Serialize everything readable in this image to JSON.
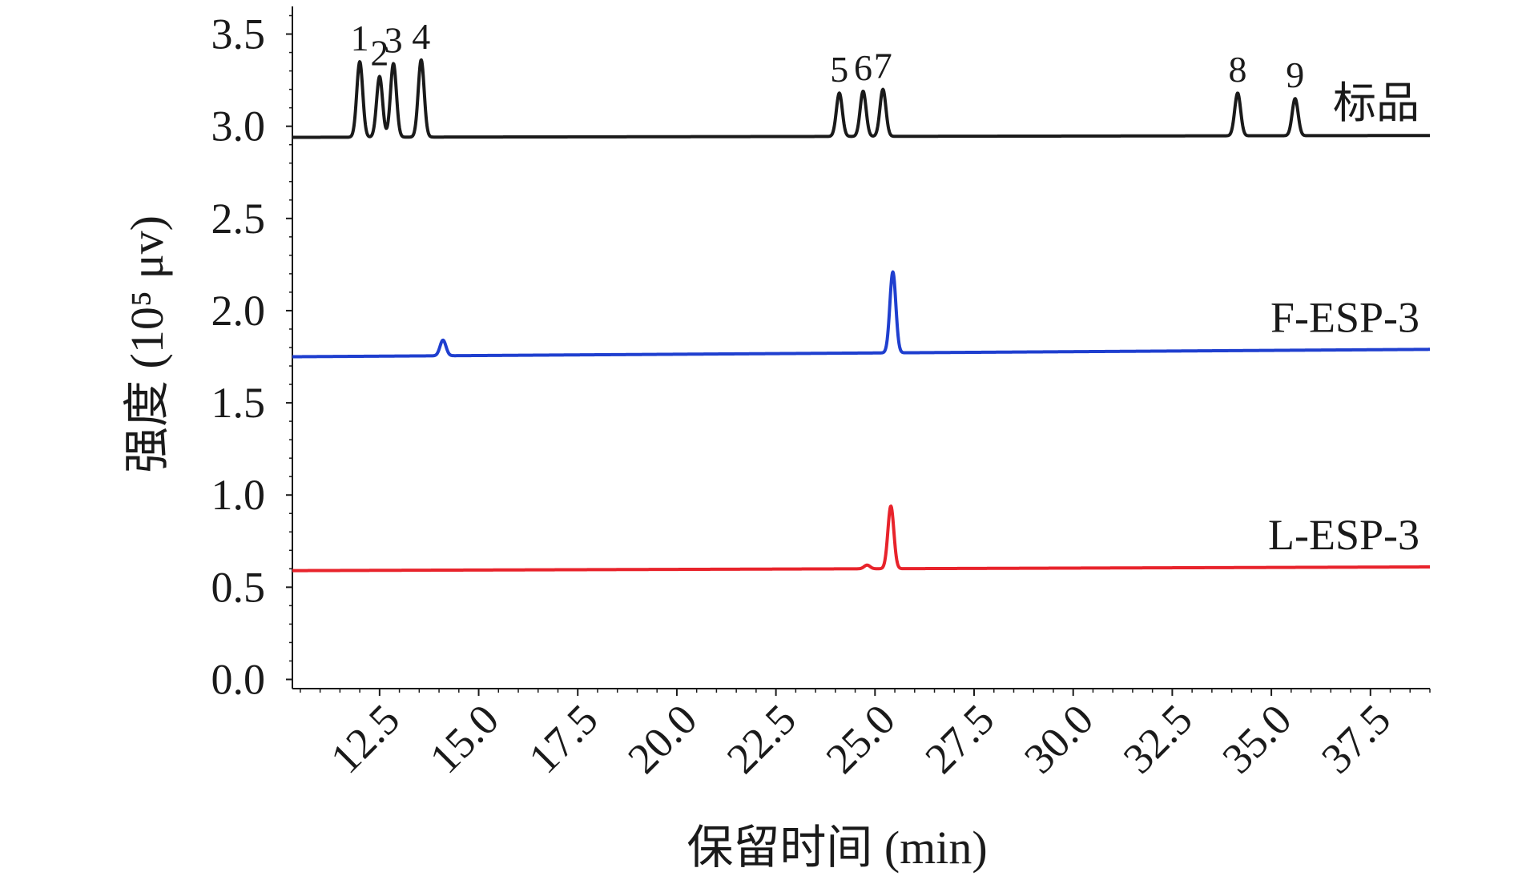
{
  "chart_data": {
    "type": "line",
    "xlabel": "保留时间 (min)",
    "ylabel": "强度 (10⁵ μv)",
    "xlim": [
      10.3,
      39.0
    ],
    "ylim": [
      -0.05,
      3.65
    ],
    "x_ticks": [
      "12.5",
      "15.0",
      "17.5",
      "20.0",
      "22.5",
      "25.0",
      "27.5",
      "30.0",
      "32.5",
      "35.0",
      "37.5"
    ],
    "y_ticks": [
      "0.0",
      "0.5",
      "1.0",
      "1.5",
      "2.0",
      "2.5",
      "3.0",
      "3.5"
    ],
    "grid": false,
    "series": [
      {
        "name": "标品",
        "color": "#1a1a1a",
        "baseline_start": 2.94,
        "baseline_end": 2.95,
        "peaks": [
          {
            "label": "1",
            "x": 12.0,
            "y": 3.35
          },
          {
            "label": "2",
            "x": 12.5,
            "y": 3.27
          },
          {
            "label": "3",
            "x": 12.85,
            "y": 3.34
          },
          {
            "label": "4",
            "x": 13.55,
            "y": 3.36
          },
          {
            "label": "5",
            "x": 24.1,
            "y": 3.18
          },
          {
            "label": "6",
            "x": 24.7,
            "y": 3.19
          },
          {
            "label": "7",
            "x": 25.2,
            "y": 3.2
          },
          {
            "label": "8",
            "x": 34.15,
            "y": 3.18
          },
          {
            "label": "9",
            "x": 35.6,
            "y": 3.15
          }
        ]
      },
      {
        "name": "F-ESP-3",
        "color": "#1f3fcf",
        "baseline_start": 1.75,
        "baseline_end": 1.79,
        "peaks": [
          {
            "label": "",
            "x": 14.1,
            "y": 1.84
          },
          {
            "label": "",
            "x": 25.45,
            "y": 2.21
          }
        ]
      },
      {
        "name": "L-ESP-3",
        "color": "#e8232b",
        "baseline_start": 0.59,
        "baseline_end": 0.61,
        "peaks": [
          {
            "label": "",
            "x": 24.8,
            "y": 0.62
          },
          {
            "label": "",
            "x": 25.4,
            "y": 0.94
          }
        ]
      }
    ]
  }
}
